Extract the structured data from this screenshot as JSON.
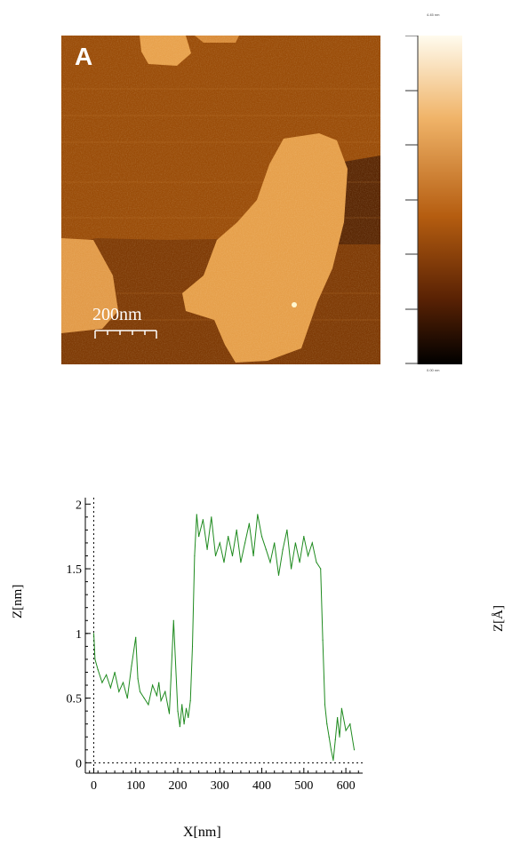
{
  "afm_image": {
    "panel_letter": "A",
    "scale_bar": "200nm",
    "colorbar_max": "4.45 nm",
    "colorbar_min": "0.00 nm"
  },
  "chart_data": {
    "type": "line",
    "xlabel": "X[nm]",
    "ylabel": "Z[nm]",
    "ylabel_secondary": "Z[Å]",
    "xlim": [
      -20,
      640
    ],
    "ylim": [
      -0.08,
      2.05
    ],
    "xticks": [
      0,
      100,
      200,
      300,
      400,
      500,
      600
    ],
    "yticks": [
      0,
      0.5,
      1,
      1.5,
      2
    ],
    "ytick_labels": [
      "0",
      "0.5",
      "1",
      "1.5",
      "2"
    ],
    "reference_lines": [
      "x=0 dotted",
      "y=0 dotted"
    ],
    "series": [
      {
        "color": "#1e8a1e",
        "x": [
          0,
          3,
          10,
          20,
          30,
          40,
          50,
          60,
          70,
          80,
          90,
          100,
          105,
          110,
          120,
          130,
          140,
          150,
          155,
          160,
          170,
          180,
          190,
          200,
          205,
          210,
          215,
          220,
          225,
          230,
          235,
          240,
          245,
          250,
          260,
          270,
          280,
          290,
          300,
          310,
          320,
          330,
          340,
          350,
          360,
          370,
          380,
          390,
          400,
          410,
          420,
          430,
          440,
          450,
          460,
          470,
          480,
          490,
          500,
          510,
          520,
          530,
          540,
          545,
          550,
          555,
          560,
          565,
          570,
          575,
          580,
          585,
          590,
          600,
          610,
          620
        ],
        "values": [
          1.0,
          0.8,
          0.72,
          0.62,
          0.68,
          0.58,
          0.7,
          0.55,
          0.62,
          0.5,
          0.75,
          0.97,
          0.65,
          0.55,
          0.5,
          0.45,
          0.6,
          0.52,
          0.62,
          0.48,
          0.55,
          0.38,
          1.1,
          0.4,
          0.28,
          0.45,
          0.3,
          0.42,
          0.35,
          0.48,
          0.9,
          1.6,
          1.92,
          1.75,
          1.88,
          1.65,
          1.9,
          1.6,
          1.7,
          1.55,
          1.75,
          1.6,
          1.8,
          1.55,
          1.7,
          1.85,
          1.6,
          1.92,
          1.75,
          1.65,
          1.55,
          1.7,
          1.45,
          1.65,
          1.8,
          1.5,
          1.7,
          1.55,
          1.75,
          1.6,
          1.7,
          1.55,
          1.5,
          0.95,
          0.45,
          0.3,
          0.2,
          0.1,
          0.02,
          0.18,
          0.35,
          0.2,
          0.42,
          0.25,
          0.3,
          0.1
        ]
      }
    ]
  }
}
